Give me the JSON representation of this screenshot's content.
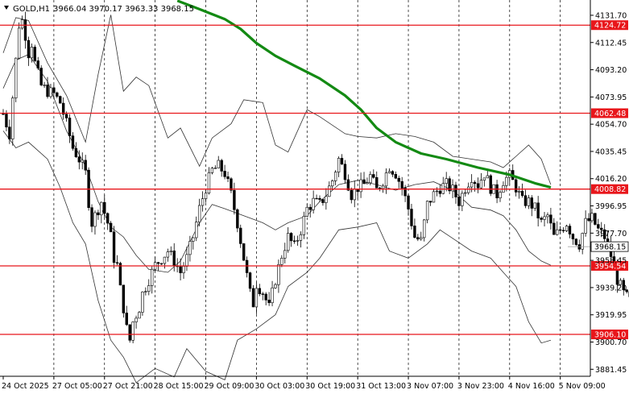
{
  "header": {
    "symbol_label": "GOLD,H1",
    "ohlc_text": "3966.04 3970.17 3963.33 3968.15",
    "dropdown_icon": "triangle-down-icon"
  },
  "chart_data": {
    "type": "candlestick",
    "symbol": "GOLD",
    "timeframe": "H1",
    "current_price": 3968.15,
    "ylim": [
      3876.5,
      4142.5
    ],
    "y_ticks": [
      {
        "value": 4131.7,
        "label": "4131.70"
      },
      {
        "value": 4112.45,
        "label": "4112.45"
      },
      {
        "value": 4093.2,
        "label": "4093.20"
      },
      {
        "value": 4073.95,
        "label": "4073.95"
      },
      {
        "value": 4054.7,
        "label": "4054.70"
      },
      {
        "value": 4035.45,
        "label": "4035.45"
      },
      {
        "value": 4016.2,
        "label": "4016.20"
      },
      {
        "value": 3996.95,
        "label": "3996.95"
      },
      {
        "value": 3977.7,
        "label": "3977.70"
      },
      {
        "value": 3958.45,
        "label": "3958.45"
      },
      {
        "value": 3939.2,
        "label": "3939.20"
      },
      {
        "value": 3919.95,
        "label": "3919.95"
      },
      {
        "value": 3900.7,
        "label": "3900.70"
      },
      {
        "value": 3881.45,
        "label": "3881.45"
      }
    ],
    "x_ticks": [
      {
        "index": 0,
        "label": "24 Oct 2025"
      },
      {
        "index": 16,
        "label": "27 Oct 05:00"
      },
      {
        "index": 32,
        "label": "27 Oct 21:00"
      },
      {
        "index": 48,
        "label": "28 Oct 15:00"
      },
      {
        "index": 64,
        "label": "29 Oct 09:00"
      },
      {
        "index": 80,
        "label": "30 Oct 03:00"
      },
      {
        "index": 96,
        "label": "30 Oct 19:00"
      },
      {
        "index": 112,
        "label": "31 Oct 13:00"
      },
      {
        "index": 128,
        "label": "3 Nov 07:00"
      },
      {
        "index": 144,
        "label": "3 Nov 23:00"
      },
      {
        "index": 160,
        "label": "4 Nov 16:00"
      },
      {
        "index": 176,
        "label": "5 Nov 09:00"
      }
    ],
    "horizontal_levels": [
      {
        "value": 4124.72,
        "label": "4124.72"
      },
      {
        "value": 4062.48,
        "label": "4062.48"
      },
      {
        "value": 4008.82,
        "label": "4008.82"
      },
      {
        "value": 3954.54,
        "label": "3954.54"
      },
      {
        "value": 3906.1,
        "label": "3906.10"
      }
    ],
    "moving_average": [
      [
        55,
        4142
      ],
      [
        62,
        4136
      ],
      [
        70,
        4129
      ],
      [
        75,
        4122
      ],
      [
        80,
        4112
      ],
      [
        86,
        4103
      ],
      [
        92,
        4096
      ],
      [
        100,
        4087
      ],
      [
        108,
        4075
      ],
      [
        113,
        4065
      ],
      [
        118,
        4052
      ],
      [
        124,
        4042
      ],
      [
        132,
        4034
      ],
      [
        140,
        4030
      ],
      [
        150,
        4024
      ],
      [
        160,
        4019
      ],
      [
        168,
        4013
      ],
      [
        173,
        4010
      ]
    ],
    "bollinger_upper": [
      [
        0,
        4105
      ],
      [
        4,
        4130
      ],
      [
        8,
        4128
      ],
      [
        14,
        4098
      ],
      [
        20,
        4075
      ],
      [
        26,
        4042
      ],
      [
        30,
        4090
      ],
      [
        34,
        4132
      ],
      [
        38,
        4078
      ],
      [
        42,
        4088
      ],
      [
        46,
        4082
      ],
      [
        52,
        4045
      ],
      [
        56,
        4052
      ],
      [
        62,
        4025
      ],
      [
        66,
        4045
      ],
      [
        72,
        4055
      ],
      [
        76,
        4072
      ],
      [
        82,
        4070
      ],
      [
        86,
        4040
      ],
      [
        90,
        4035
      ],
      [
        96,
        4065
      ],
      [
        100,
        4060
      ],
      [
        108,
        4048
      ],
      [
        112,
        4046
      ],
      [
        118,
        4045
      ],
      [
        124,
        4048
      ],
      [
        130,
        4046
      ],
      [
        136,
        4042
      ],
      [
        142,
        4032
      ],
      [
        148,
        4030
      ],
      [
        154,
        4028
      ],
      [
        158,
        4024
      ],
      [
        162,
        4032
      ],
      [
        166,
        4040
      ],
      [
        170,
        4030
      ],
      [
        173,
        4012
      ]
    ],
    "bollinger_middle": [
      [
        0,
        4080
      ],
      [
        4,
        4100
      ],
      [
        8,
        4104
      ],
      [
        14,
        4085
      ],
      [
        20,
        4050
      ],
      [
        26,
        4025
      ],
      [
        30,
        4000
      ],
      [
        34,
        3982
      ],
      [
        38,
        3975
      ],
      [
        42,
        3962
      ],
      [
        46,
        3952
      ],
      [
        52,
        3950
      ],
      [
        56,
        3958
      ],
      [
        62,
        3985
      ],
      [
        66,
        3998
      ],
      [
        70,
        3995
      ],
      [
        76,
        3990
      ],
      [
        82,
        3985
      ],
      [
        86,
        3980
      ],
      [
        90,
        3985
      ],
      [
        96,
        3990
      ],
      [
        100,
        4000
      ],
      [
        106,
        4012
      ],
      [
        112,
        4015
      ],
      [
        118,
        4012
      ],
      [
        124,
        4008
      ],
      [
        130,
        4012
      ],
      [
        136,
        4014
      ],
      [
        142,
        4008
      ],
      [
        148,
        3996
      ],
      [
        154,
        3994
      ],
      [
        158,
        3990
      ],
      [
        162,
        3980
      ],
      [
        166,
        3965
      ],
      [
        170,
        3958
      ],
      [
        173,
        3955
      ]
    ],
    "bollinger_lower": [
      [
        0,
        4050
      ],
      [
        4,
        4038
      ],
      [
        8,
        4042
      ],
      [
        14,
        4030
      ],
      [
        18,
        4010
      ],
      [
        22,
        3985
      ],
      [
        26,
        3970
      ],
      [
        30,
        3930
      ],
      [
        34,
        3902
      ],
      [
        38,
        3890
      ],
      [
        42,
        3872
      ],
      [
        48,
        3882
      ],
      [
        54,
        3876
      ],
      [
        58,
        3896
      ],
      [
        64,
        3880
      ],
      [
        70,
        3874
      ],
      [
        74,
        3902
      ],
      [
        80,
        3910
      ],
      [
        86,
        3920
      ],
      [
        90,
        3940
      ],
      [
        96,
        3950
      ],
      [
        100,
        3960
      ],
      [
        106,
        3980
      ],
      [
        112,
        3982
      ],
      [
        118,
        3985
      ],
      [
        122,
        3965
      ],
      [
        128,
        3960
      ],
      [
        134,
        3970
      ],
      [
        138,
        3980
      ],
      [
        142,
        3974
      ],
      [
        148,
        3965
      ],
      [
        154,
        3960
      ],
      [
        158,
        3950
      ],
      [
        162,
        3940
      ],
      [
        166,
        3915
      ],
      [
        170,
        3900
      ],
      [
        173,
        3902
      ]
    ],
    "candle_path": [
      [
        0,
        4062
      ],
      [
        2,
        4048
      ],
      [
        4,
        4100
      ],
      [
        5,
        4125
      ],
      [
        6,
        4128
      ],
      [
        7,
        4118
      ],
      [
        8,
        4105
      ],
      [
        9,
        4112
      ],
      [
        10,
        4098
      ],
      [
        12,
        4082
      ],
      [
        14,
        4078
      ],
      [
        16,
        4076
      ],
      [
        18,
        4070
      ],
      [
        20,
        4055
      ],
      [
        22,
        4038
      ],
      [
        24,
        4030
      ],
      [
        26,
        4020
      ],
      [
        27,
        4000
      ],
      [
        28,
        3985
      ],
      [
        30,
        3995
      ],
      [
        31,
        4000
      ],
      [
        32,
        3992
      ],
      [
        33,
        3985
      ],
      [
        34,
        3975
      ],
      [
        35,
        3960
      ],
      [
        36,
        3955
      ],
      [
        37,
        3938
      ],
      [
        38,
        3925
      ],
      [
        39,
        3910
      ],
      [
        40,
        3902
      ],
      [
        41,
        3915
      ],
      [
        42,
        3920
      ],
      [
        43,
        3925
      ],
      [
        44,
        3935
      ],
      [
        46,
        3945
      ],
      [
        48,
        3955
      ],
      [
        50,
        3960
      ],
      [
        52,
        3965
      ],
      [
        54,
        3958
      ],
      [
        56,
        3950
      ],
      [
        58,
        3960
      ],
      [
        60,
        3975
      ],
      [
        62,
        3995
      ],
      [
        64,
        4010
      ],
      [
        66,
        4022
      ],
      [
        68,
        4025
      ],
      [
        70,
        4020
      ],
      [
        72,
        4005
      ],
      [
        74,
        3985
      ],
      [
        76,
        3960
      ],
      [
        78,
        3935
      ],
      [
        79,
        3928
      ],
      [
        80,
        3942
      ],
      [
        82,
        3936
      ],
      [
        84,
        3925
      ],
      [
        86,
        3945
      ],
      [
        88,
        3962
      ],
      [
        90,
        3975
      ],
      [
        92,
        3968
      ],
      [
        94,
        3980
      ],
      [
        96,
        3995
      ],
      [
        98,
        4000
      ],
      [
        100,
        3998
      ],
      [
        102,
        4005
      ],
      [
        104,
        4015
      ],
      [
        106,
        4030
      ],
      [
        108,
        4020
      ],
      [
        110,
        4005
      ],
      [
        112,
        4010
      ],
      [
        114,
        4012
      ],
      [
        116,
        4018
      ],
      [
        118,
        4008
      ],
      [
        120,
        4015
      ],
      [
        122,
        4025
      ],
      [
        124,
        4020
      ],
      [
        126,
        4010
      ],
      [
        128,
        3995
      ],
      [
        130,
        3975
      ],
      [
        132,
        3972
      ],
      [
        134,
        3998
      ],
      [
        136,
        4005
      ],
      [
        138,
        4010
      ],
      [
        140,
        4012
      ],
      [
        142,
        4008
      ],
      [
        144,
        4000
      ],
      [
        146,
        4010
      ],
      [
        148,
        4018
      ],
      [
        150,
        4012
      ],
      [
        152,
        4020
      ],
      [
        154,
        4010
      ],
      [
        156,
        4005
      ],
      [
        158,
        4015
      ],
      [
        160,
        4018
      ],
      [
        162,
        4010
      ],
      [
        164,
        4000
      ],
      [
        166,
        4000
      ],
      [
        168,
        3995
      ],
      [
        170,
        3985
      ],
      [
        172,
        3990
      ],
      [
        174,
        3975
      ],
      [
        176,
        3980
      ],
      [
        178,
        3985
      ],
      [
        180,
        3975
      ],
      [
        182,
        3970
      ],
      [
        184,
        3985
      ],
      [
        186,
        3988
      ],
      [
        188,
        3980
      ],
      [
        190,
        3975
      ],
      [
        192,
        3962
      ],
      [
        194,
        3945
      ],
      [
        196,
        3935
      ],
      [
        198,
        3930
      ],
      [
        200,
        3928
      ],
      [
        202,
        3935
      ],
      [
        204,
        3948
      ],
      [
        206,
        3960
      ],
      [
        208,
        3972
      ],
      [
        210,
        3968
      ]
    ]
  }
}
